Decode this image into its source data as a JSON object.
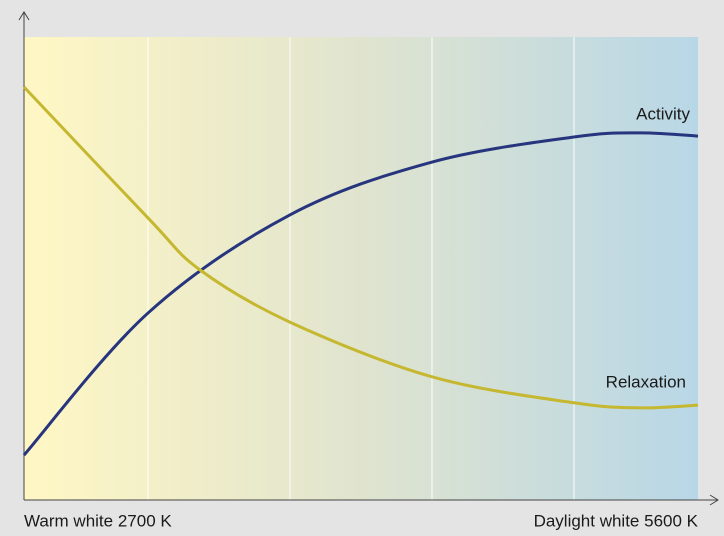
{
  "chart_data": {
    "type": "line",
    "x_start_label": "Warm white 2700 K",
    "x_end_label": "Daylight white 5600 K",
    "xlim": [
      2700,
      5600
    ],
    "ylim": [
      0,
      100
    ],
    "series": [
      {
        "name": "Activity",
        "color": "#27357e",
        "x": [
          2700,
          3234,
          3845,
          4456,
          5066,
          5350,
          5600
        ],
        "values": [
          9.7,
          40.4,
          61.6,
          73,
          78.4,
          79.3,
          78.6
        ]
      },
      {
        "name": "Relaxation",
        "color": "#c5b830",
        "x": [
          2700,
          3234,
          3457,
          3845,
          4456,
          5066,
          5350,
          5600
        ],
        "values": [
          89.2,
          60.9,
          49.7,
          38.4,
          26.6,
          21,
          19.9,
          20.5
        ]
      }
    ]
  }
}
